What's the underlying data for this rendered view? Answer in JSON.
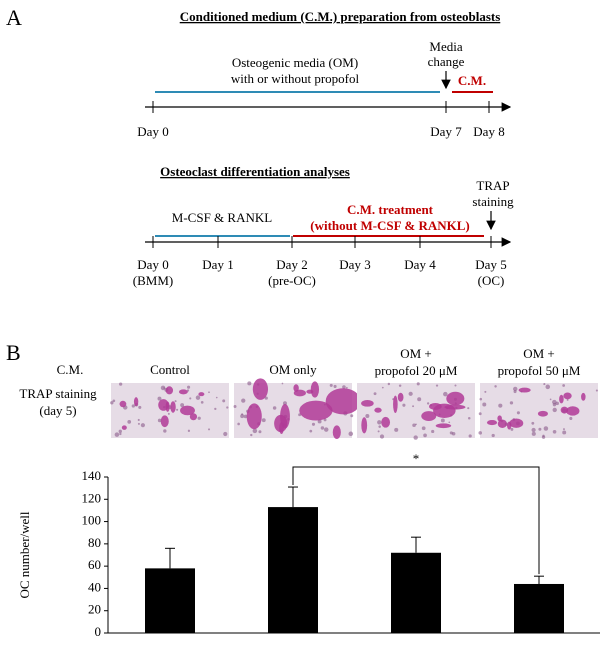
{
  "panel_a": {
    "label": "A",
    "prep": {
      "title": "Conditioned medium (C.M.) preparation from osteoblasts",
      "days": [
        "Day 0",
        "Day 7",
        "Day 8"
      ],
      "om_text": [
        "Osteogenic media (OM)",
        "with or without propofol"
      ],
      "event": [
        "Media",
        "change"
      ],
      "cm": "C.M."
    },
    "diff": {
      "title": "Osteoclast differentiation analyses",
      "days": [
        "Day 0",
        "Day 1",
        "Day 2",
        "Day 3",
        "Day 4",
        "Day 5"
      ],
      "day_notes": [
        "(BMM)",
        "(pre-OC)",
        "(OC)"
      ],
      "phase1": "M-CSF & RANKL",
      "phase2": [
        "C.M. treatment",
        "(without M-CSF & RANKL)"
      ],
      "event": [
        "TRAP",
        "staining"
      ]
    }
  },
  "panel_b": {
    "label": "B",
    "row_label": "C.M.",
    "conditions": [
      [
        "Control"
      ],
      [
        "OM only"
      ],
      [
        "OM +",
        "propofol 20 μM"
      ],
      [
        "OM +",
        "propofol 50 μM"
      ]
    ],
    "image_label": [
      "TRAP staining",
      "(day 5)"
    ]
  },
  "chart_data": {
    "type": "bar",
    "y_label": "OC number/well",
    "categories": [
      null,
      null,
      null,
      null
    ],
    "values": [
      58,
      113,
      72,
      44
    ],
    "errors": [
      18,
      18,
      14,
      7
    ],
    "color": "#000000",
    "ylim": [
      0,
      140
    ],
    "yticks": [
      0,
      20,
      40,
      60,
      80,
      100,
      120,
      140
    ],
    "annotation": "*"
  }
}
